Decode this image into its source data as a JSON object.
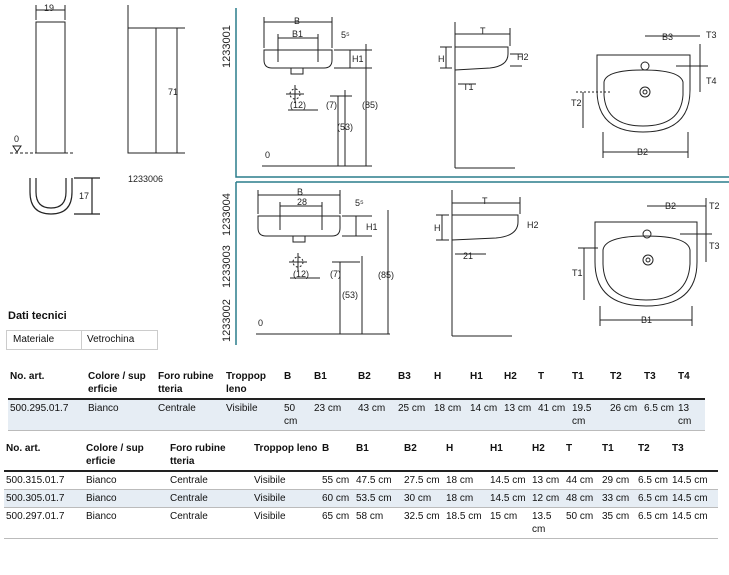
{
  "drawings": {
    "pedestal": {
      "width_label": "19",
      "zero_label": "0",
      "height_label": "71",
      "code": "1233006",
      "trap_label": "17"
    },
    "top_panel": {
      "code": "1233001",
      "front": {
        "B": "B",
        "B1": "B1",
        "five": "5⁵",
        "H1": "H1",
        "d12": "(12)",
        "d7": "(7)",
        "d53": "(53)",
        "d85": "(85)",
        "zero": "0"
      },
      "side": {
        "T": "T",
        "H": "H",
        "H2": "H2",
        "T1": "T1"
      },
      "plan": {
        "B3": "B3",
        "T3": "T3",
        "T4": "T4",
        "T2": "T2",
        "B2": "B2"
      }
    },
    "bottom_panel": {
      "codes": [
        "1233004",
        "1233003",
        "1233002"
      ],
      "front": {
        "B": "B",
        "twenty_eight": "28",
        "five": "5⁵",
        "H1": "H1",
        "d12": "(12)",
        "d7": "(7)",
        "d53": "(53)",
        "d85": "(85)",
        "zero": "0"
      },
      "side": {
        "T": "T",
        "H": "H",
        "H2": "H2",
        "twenty_one": "21"
      },
      "plan": {
        "B2": "B2",
        "T2": "T2",
        "T3": "T3",
        "T1": "T1",
        "B1": "B1"
      }
    }
  },
  "tech": {
    "title": "Dati tecnici",
    "material_label": "Materiale",
    "material_value": "Vetrochina"
  },
  "table1": {
    "headers": [
      "No. art.",
      "Colore / sup erficie",
      "Foro rubine tteria",
      "Troppop leno",
      "B",
      "B1",
      "B2",
      "B3",
      "H",
      "H1",
      "H2",
      "T",
      "T1",
      "T2",
      "T3",
      "T4"
    ],
    "rows": [
      [
        "500.295.01.7",
        "Bianco",
        "Centrale",
        "Visibile",
        "50 cm",
        "23 cm",
        "43 cm",
        "25 cm",
        "18 cm",
        "14 cm",
        "13 cm",
        "41 cm",
        "19.5 cm",
        "26 cm",
        "6.5 cm",
        "13 cm"
      ]
    ]
  },
  "table2": {
    "headers": [
      "No. art.",
      "Colore / sup erficie",
      "Foro rubine tteria",
      "Troppop leno",
      "B",
      "B1",
      "B2",
      "H",
      "H1",
      "H2",
      "T",
      "T1",
      "T2",
      "T3"
    ],
    "rows": [
      [
        "500.315.01.7",
        "Bianco",
        "Centrale",
        "Visibile",
        "55 cm",
        "47.5 cm",
        "27.5 cm",
        "18 cm",
        "14.5 cm",
        "13 cm",
        "44 cm",
        "29 cm",
        "6.5 cm",
        "14.5 cm"
      ],
      [
        "500.305.01.7",
        "Bianco",
        "Centrale",
        "Visibile",
        "60 cm",
        "53.5 cm",
        "30 cm",
        "18 cm",
        "14.5 cm",
        "12 cm",
        "48 cm",
        "33 cm",
        "6.5 cm",
        "14.5 cm"
      ],
      [
        "500.297.01.7",
        "Bianco",
        "Centrale",
        "Visibile",
        "65 cm",
        "58 cm",
        "32.5 cm",
        "18.5 cm",
        "15 cm",
        "13.5 cm",
        "50 cm",
        "35 cm",
        "6.5 cm",
        "14.5 cm"
      ]
    ]
  },
  "colors": {
    "frame": "#2a7d8c",
    "line": "#222222",
    "shade": "#e6edf4"
  }
}
